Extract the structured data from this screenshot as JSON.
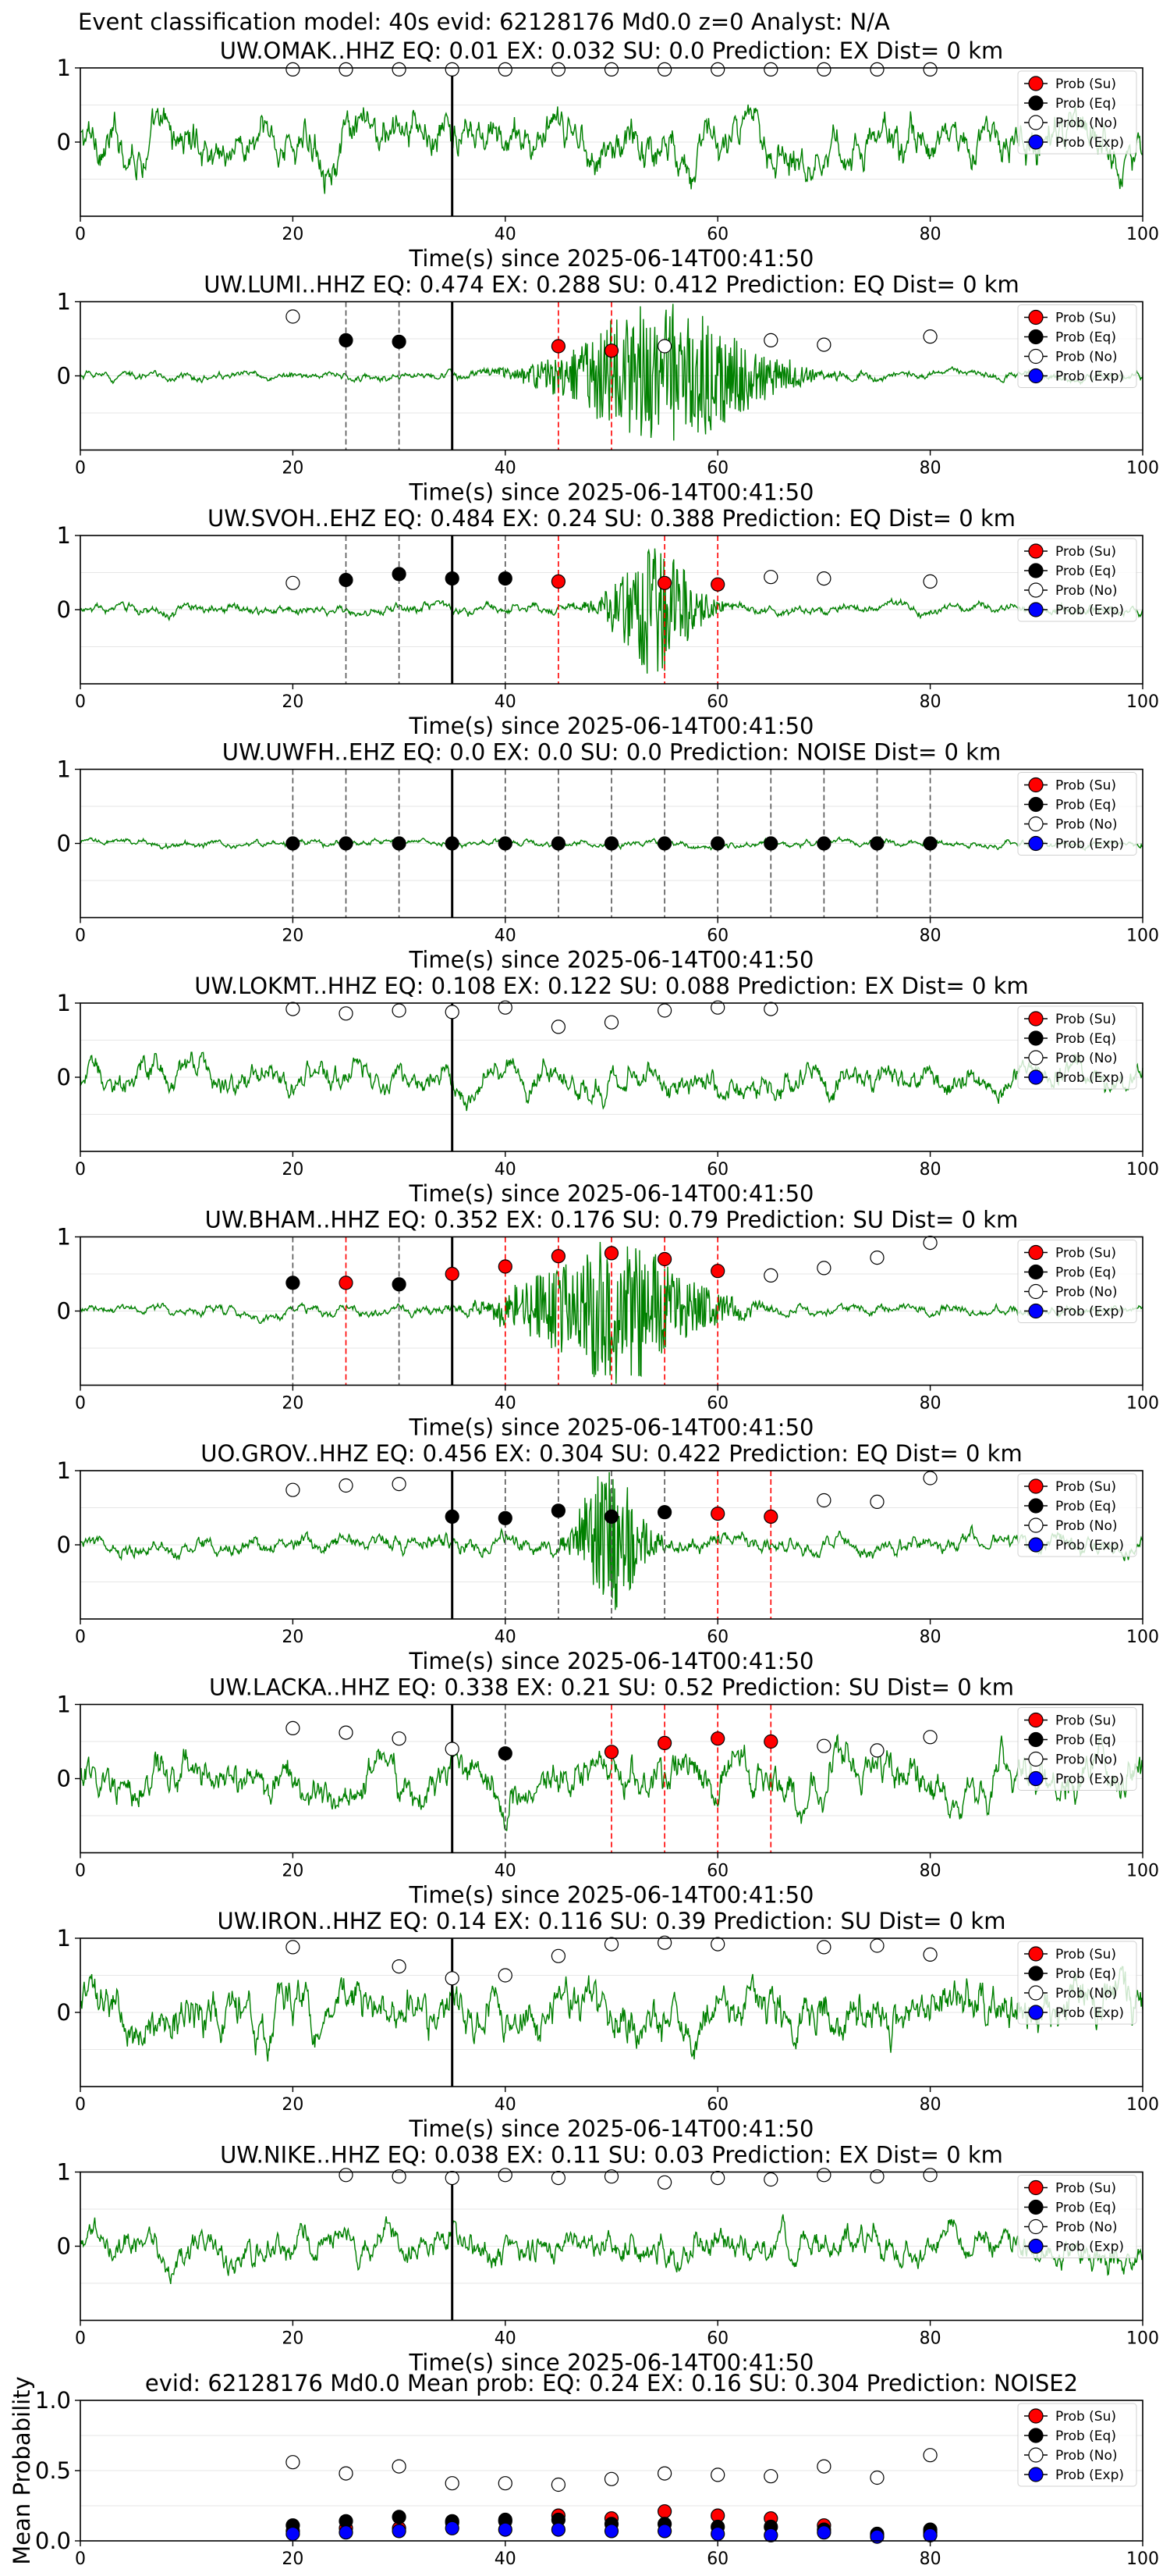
{
  "suptitle": "Event classification model: 40s evid: 62128176 Md0.0 z=0 Analyst: N/A",
  "legend_labels": [
    "Prob (Su)",
    "Prob (Eq)",
    "Prob (No)",
    "Prob (Exp)"
  ],
  "colors": {
    "waveform": "#008000",
    "su": "#ff0000",
    "eq": "#000000",
    "no": "#ffffff",
    "exp": "#0000ff",
    "su_line": "#ff0000",
    "eq_line": "#555555",
    "origin_line": "#000000",
    "grid": "#e6e6e6"
  },
  "chart_data": [
    {
      "type": "line",
      "title": "UW.OMAK..HHZ   EQ: 0.01  EX: 0.032  SU: 0.0   Prediction: EX    Dist= 0 km",
      "xlabel": "Time(s) since 2025-06-14T00:41:50",
      "xlim": [
        0,
        100
      ],
      "ylim": [
        -1,
        1
      ],
      "xticks": [
        0,
        20,
        40,
        60,
        80,
        100
      ],
      "yticks": [
        0,
        1
      ],
      "origin_time": 35,
      "amplitude": 0.8,
      "burst": null,
      "markers": [
        {
          "t": 20,
          "y": 0.98,
          "cls": "no"
        },
        {
          "t": 25,
          "y": 0.98,
          "cls": "no"
        },
        {
          "t": 30,
          "y": 0.98,
          "cls": "no"
        },
        {
          "t": 35,
          "y": 0.98,
          "cls": "no"
        },
        {
          "t": 40,
          "y": 0.98,
          "cls": "no"
        },
        {
          "t": 45,
          "y": 0.98,
          "cls": "no"
        },
        {
          "t": 50,
          "y": 0.98,
          "cls": "no"
        },
        {
          "t": 55,
          "y": 0.98,
          "cls": "no"
        },
        {
          "t": 60,
          "y": 0.98,
          "cls": "no"
        },
        {
          "t": 65,
          "y": 0.98,
          "cls": "no"
        },
        {
          "t": 70,
          "y": 0.98,
          "cls": "no"
        },
        {
          "t": 75,
          "y": 0.98,
          "cls": "no"
        },
        {
          "t": 80,
          "y": 0.98,
          "cls": "no"
        }
      ]
    },
    {
      "type": "line",
      "title": "UW.LUMI..HHZ   EQ: 0.474  EX: 0.288  SU: 0.412   Prediction: EQ    Dist= 0 km",
      "xlabel": "Time(s) since 2025-06-14T00:41:50",
      "xlim": [
        0,
        100
      ],
      "ylim": [
        -1,
        1
      ],
      "xticks": [
        0,
        20,
        40,
        60,
        80,
        100
      ],
      "yticks": [
        0,
        1
      ],
      "origin_time": 35,
      "amplitude": 0.15,
      "burst": {
        "center": 55,
        "width": 9,
        "gain": 1.0
      },
      "markers": [
        {
          "t": 20,
          "y": 0.8,
          "cls": "no"
        },
        {
          "t": 25,
          "y": 0.48,
          "cls": "eq"
        },
        {
          "t": 30,
          "y": 0.46,
          "cls": "eq"
        },
        {
          "t": 45,
          "y": 0.4,
          "cls": "su"
        },
        {
          "t": 50,
          "y": 0.34,
          "cls": "su"
        },
        {
          "t": 55,
          "y": 0.4,
          "cls": "no"
        },
        {
          "t": 65,
          "y": 0.48,
          "cls": "no"
        },
        {
          "t": 70,
          "y": 0.42,
          "cls": "no"
        },
        {
          "t": 80,
          "y": 0.53,
          "cls": "no"
        }
      ]
    },
    {
      "type": "line",
      "title": "UW.SVOH..EHZ   EQ: 0.484  EX: 0.24  SU: 0.388   Prediction: EQ    Dist= 0 km",
      "xlabel": "Time(s) since 2025-06-14T00:41:50",
      "xlim": [
        0,
        100
      ],
      "ylim": [
        -1,
        1
      ],
      "xticks": [
        0,
        20,
        40,
        60,
        80,
        100
      ],
      "yticks": [
        0,
        1
      ],
      "origin_time": 35,
      "amplitude": 0.18,
      "burst": {
        "center": 54,
        "width": 4,
        "gain": 0.9
      },
      "markers": [
        {
          "t": 20,
          "y": 0.36,
          "cls": "no"
        },
        {
          "t": 25,
          "y": 0.4,
          "cls": "eq"
        },
        {
          "t": 30,
          "y": 0.48,
          "cls": "eq"
        },
        {
          "t": 35,
          "y": 0.42,
          "cls": "eq"
        },
        {
          "t": 40,
          "y": 0.42,
          "cls": "eq"
        },
        {
          "t": 45,
          "y": 0.38,
          "cls": "su"
        },
        {
          "t": 55,
          "y": 0.36,
          "cls": "su"
        },
        {
          "t": 60,
          "y": 0.34,
          "cls": "su"
        },
        {
          "t": 65,
          "y": 0.44,
          "cls": "no"
        },
        {
          "t": 70,
          "y": 0.42,
          "cls": "no"
        },
        {
          "t": 80,
          "y": 0.38,
          "cls": "no"
        }
      ]
    },
    {
      "type": "line",
      "title": "UW.UWFH..EHZ   EQ: 0.0  EX: 0.0  SU: 0.0   Prediction: NOISE    Dist= 0 km",
      "xlabel": "Time(s) since 2025-06-14T00:41:50",
      "xlim": [
        0,
        100
      ],
      "ylim": [
        -1,
        1
      ],
      "xticks": [
        0,
        20,
        40,
        60,
        80,
        100
      ],
      "yticks": [
        0,
        1
      ],
      "origin_time": 35,
      "amplitude": 0.12,
      "burst": null,
      "markers": [
        {
          "t": 20,
          "y": 0.0,
          "cls": "eq"
        },
        {
          "t": 25,
          "y": 0.0,
          "cls": "eq"
        },
        {
          "t": 30,
          "y": 0.0,
          "cls": "eq"
        },
        {
          "t": 35,
          "y": 0.0,
          "cls": "eq"
        },
        {
          "t": 40,
          "y": 0.0,
          "cls": "eq"
        },
        {
          "t": 45,
          "y": 0.0,
          "cls": "eq"
        },
        {
          "t": 50,
          "y": 0.0,
          "cls": "eq"
        },
        {
          "t": 55,
          "y": 0.0,
          "cls": "eq"
        },
        {
          "t": 60,
          "y": 0.0,
          "cls": "eq"
        },
        {
          "t": 65,
          "y": 0.0,
          "cls": "eq"
        },
        {
          "t": 70,
          "y": 0.0,
          "cls": "eq"
        },
        {
          "t": 75,
          "y": 0.0,
          "cls": "eq"
        },
        {
          "t": 80,
          "y": 0.0,
          "cls": "eq"
        }
      ]
    },
    {
      "type": "line",
      "title": "UW.LOKMT..HHZ   EQ: 0.108  EX: 0.122  SU: 0.088   Prediction: EX    Dist= 0 km",
      "xlabel": "Time(s) since 2025-06-14T00:41:50",
      "xlim": [
        0,
        100
      ],
      "ylim": [
        -1,
        1
      ],
      "xticks": [
        0,
        20,
        40,
        60,
        80,
        100
      ],
      "yticks": [
        0,
        1
      ],
      "origin_time": 35,
      "amplitude": 0.5,
      "burst": null,
      "markers": [
        {
          "t": 20,
          "y": 0.92,
          "cls": "no"
        },
        {
          "t": 25,
          "y": 0.86,
          "cls": "no"
        },
        {
          "t": 30,
          "y": 0.9,
          "cls": "no"
        },
        {
          "t": 35,
          "y": 0.88,
          "cls": "no"
        },
        {
          "t": 40,
          "y": 0.94,
          "cls": "no"
        },
        {
          "t": 45,
          "y": 0.68,
          "cls": "no"
        },
        {
          "t": 50,
          "y": 0.74,
          "cls": "no"
        },
        {
          "t": 55,
          "y": 0.9,
          "cls": "no"
        },
        {
          "t": 60,
          "y": 0.94,
          "cls": "no"
        },
        {
          "t": 65,
          "y": 0.92,
          "cls": "no"
        }
      ]
    },
    {
      "type": "line",
      "title": "UW.BHAM..HHZ   EQ: 0.352  EX: 0.176  SU: 0.79   Prediction: SU    Dist= 0 km",
      "xlabel": "Time(s) since 2025-06-14T00:41:50",
      "xlim": [
        0,
        100
      ],
      "ylim": [
        -1,
        1
      ],
      "xticks": [
        0,
        20,
        40,
        60,
        80,
        100
      ],
      "yticks": [
        0,
        1
      ],
      "origin_time": 35,
      "amplitude": 0.18,
      "burst": {
        "center": 50,
        "width": 8,
        "gain": 1.0
      },
      "markers": [
        {
          "t": 20,
          "y": 0.38,
          "cls": "eq"
        },
        {
          "t": 25,
          "y": 0.38,
          "cls": "su"
        },
        {
          "t": 30,
          "y": 0.36,
          "cls": "eq"
        },
        {
          "t": 35,
          "y": 0.5,
          "cls": "su"
        },
        {
          "t": 40,
          "y": 0.6,
          "cls": "su"
        },
        {
          "t": 45,
          "y": 0.74,
          "cls": "su"
        },
        {
          "t": 50,
          "y": 0.78,
          "cls": "su"
        },
        {
          "t": 55,
          "y": 0.7,
          "cls": "su"
        },
        {
          "t": 60,
          "y": 0.54,
          "cls": "su"
        },
        {
          "t": 65,
          "y": 0.48,
          "cls": "no"
        },
        {
          "t": 70,
          "y": 0.58,
          "cls": "no"
        },
        {
          "t": 75,
          "y": 0.72,
          "cls": "no"
        },
        {
          "t": 80,
          "y": 0.92,
          "cls": "no"
        }
      ]
    },
    {
      "type": "line",
      "title": "UO.GROV..HHZ   EQ: 0.456  EX: 0.304  SU: 0.422   Prediction: EQ    Dist= 0 km",
      "xlabel": "Time(s) since 2025-06-14T00:41:50",
      "xlim": [
        0,
        100
      ],
      "ylim": [
        -1,
        1
      ],
      "xticks": [
        0,
        20,
        40,
        60,
        80,
        100
      ],
      "yticks": [
        0,
        1
      ],
      "origin_time": 35,
      "amplitude": 0.3,
      "burst": {
        "center": 50,
        "width": 3,
        "gain": 1.0
      },
      "markers": [
        {
          "t": 20,
          "y": 0.74,
          "cls": "no"
        },
        {
          "t": 25,
          "y": 0.8,
          "cls": "no"
        },
        {
          "t": 30,
          "y": 0.82,
          "cls": "no"
        },
        {
          "t": 35,
          "y": 0.38,
          "cls": "eq"
        },
        {
          "t": 40,
          "y": 0.36,
          "cls": "eq"
        },
        {
          "t": 45,
          "y": 0.46,
          "cls": "eq"
        },
        {
          "t": 50,
          "y": 0.38,
          "cls": "eq"
        },
        {
          "t": 55,
          "y": 0.44,
          "cls": "eq"
        },
        {
          "t": 60,
          "y": 0.42,
          "cls": "su"
        },
        {
          "t": 65,
          "y": 0.38,
          "cls": "su"
        },
        {
          "t": 70,
          "y": 0.6,
          "cls": "no"
        },
        {
          "t": 75,
          "y": 0.58,
          "cls": "no"
        },
        {
          "t": 80,
          "y": 0.9,
          "cls": "no"
        }
      ]
    },
    {
      "type": "line",
      "title": "UW.LACKA..HHZ   EQ: 0.338  EX: 0.21  SU: 0.52   Prediction: SU    Dist= 0 km",
      "xlabel": "Time(s) since 2025-06-14T00:41:50",
      "xlim": [
        0,
        100
      ],
      "ylim": [
        -1,
        1
      ],
      "xticks": [
        0,
        20,
        40,
        60,
        80,
        100
      ],
      "yticks": [
        0,
        1
      ],
      "origin_time": 35,
      "amplitude": 0.75,
      "burst": null,
      "markers": [
        {
          "t": 20,
          "y": 0.68,
          "cls": "no"
        },
        {
          "t": 25,
          "y": 0.62,
          "cls": "no"
        },
        {
          "t": 30,
          "y": 0.54,
          "cls": "no"
        },
        {
          "t": 35,
          "y": 0.4,
          "cls": "no"
        },
        {
          "t": 40,
          "y": 0.34,
          "cls": "eq"
        },
        {
          "t": 50,
          "y": 0.36,
          "cls": "su"
        },
        {
          "t": 55,
          "y": 0.48,
          "cls": "su"
        },
        {
          "t": 60,
          "y": 0.54,
          "cls": "su"
        },
        {
          "t": 65,
          "y": 0.5,
          "cls": "su"
        },
        {
          "t": 70,
          "y": 0.44,
          "cls": "no"
        },
        {
          "t": 75,
          "y": 0.38,
          "cls": "no"
        },
        {
          "t": 80,
          "y": 0.56,
          "cls": "no"
        }
      ]
    },
    {
      "type": "line",
      "title": "UW.IRON..HHZ   EQ: 0.14  EX: 0.116  SU: 0.39   Prediction: SU    Dist= 0 km",
      "xlabel": "Time(s) since 2025-06-14T00:41:50",
      "xlim": [
        0,
        100
      ],
      "ylim": [
        -1,
        1
      ],
      "xticks": [
        0,
        20,
        40,
        60,
        80,
        100
      ],
      "yticks": [
        0,
        1
      ],
      "origin_time": 35,
      "amplitude": 0.85,
      "burst": null,
      "markers": [
        {
          "t": 20,
          "y": 0.88,
          "cls": "no"
        },
        {
          "t": 30,
          "y": 0.62,
          "cls": "no"
        },
        {
          "t": 35,
          "y": 0.46,
          "cls": "no"
        },
        {
          "t": 40,
          "y": 0.5,
          "cls": "no"
        },
        {
          "t": 45,
          "y": 0.76,
          "cls": "no"
        },
        {
          "t": 50,
          "y": 0.92,
          "cls": "no"
        },
        {
          "t": 55,
          "y": 0.94,
          "cls": "no"
        },
        {
          "t": 60,
          "y": 0.92,
          "cls": "no"
        },
        {
          "t": 70,
          "y": 0.88,
          "cls": "no"
        },
        {
          "t": 75,
          "y": 0.9,
          "cls": "no"
        },
        {
          "t": 80,
          "y": 0.78,
          "cls": "no"
        }
      ]
    },
    {
      "type": "line",
      "title": "UW.NIKE..HHZ   EQ: 0.038  EX: 0.11  SU: 0.03   Prediction: EX    Dist= 0 km",
      "xlabel": "Time(s) since 2025-06-14T00:41:50",
      "xlim": [
        0,
        100
      ],
      "ylim": [
        -1,
        1
      ],
      "xticks": [
        0,
        20,
        40,
        60,
        80,
        100
      ],
      "yticks": [
        0,
        1
      ],
      "origin_time": 35,
      "amplitude": 0.55,
      "burst": null,
      "markers": [
        {
          "t": 25,
          "y": 0.96,
          "cls": "no"
        },
        {
          "t": 30,
          "y": 0.94,
          "cls": "no"
        },
        {
          "t": 35,
          "y": 0.92,
          "cls": "no"
        },
        {
          "t": 40,
          "y": 0.96,
          "cls": "no"
        },
        {
          "t": 45,
          "y": 0.92,
          "cls": "no"
        },
        {
          "t": 50,
          "y": 0.94,
          "cls": "no"
        },
        {
          "t": 55,
          "y": 0.86,
          "cls": "no"
        },
        {
          "t": 60,
          "y": 0.92,
          "cls": "no"
        },
        {
          "t": 65,
          "y": 0.9,
          "cls": "no"
        },
        {
          "t": 70,
          "y": 0.96,
          "cls": "no"
        },
        {
          "t": 75,
          "y": 0.94,
          "cls": "no"
        },
        {
          "t": 80,
          "y": 0.96,
          "cls": "no"
        }
      ]
    },
    {
      "type": "scatter",
      "title": "evid: 62128176  Md0.0   Mean prob:   EQ: 0.24  EX: 0.16  SU: 0.304   Prediction: NOISE2",
      "ylabel": "Mean Probability",
      "xlim": [
        0,
        100
      ],
      "ylim": [
        0,
        1
      ],
      "xticks": [
        0,
        20,
        40,
        60,
        80,
        100
      ],
      "yticks": [
        0.0,
        0.5,
        1.0
      ],
      "series": [
        {
          "name": "Prob (Su)",
          "cls": "su",
          "x": [
            20,
            25,
            30,
            35,
            40,
            45,
            50,
            55,
            60,
            65,
            70,
            75,
            80
          ],
          "y": [
            0.07,
            0.09,
            0.09,
            0.13,
            0.14,
            0.18,
            0.16,
            0.21,
            0.18,
            0.16,
            0.11,
            0.04,
            0.06
          ]
        },
        {
          "name": "Prob (Eq)",
          "cls": "eq",
          "x": [
            20,
            25,
            30,
            35,
            40,
            45,
            50,
            55,
            60,
            65,
            70,
            75,
            80
          ],
          "y": [
            0.11,
            0.14,
            0.17,
            0.14,
            0.15,
            0.15,
            0.12,
            0.12,
            0.1,
            0.1,
            0.08,
            0.05,
            0.08
          ]
        },
        {
          "name": "Prob (No)",
          "cls": "no",
          "x": [
            20,
            25,
            30,
            35,
            40,
            45,
            50,
            55,
            60,
            65,
            70,
            75,
            80
          ],
          "y": [
            0.56,
            0.48,
            0.53,
            0.41,
            0.41,
            0.4,
            0.44,
            0.48,
            0.47,
            0.46,
            0.53,
            0.45,
            0.61
          ]
        },
        {
          "name": "Prob (Exp)",
          "cls": "exp",
          "x": [
            20,
            25,
            30,
            35,
            40,
            45,
            50,
            55,
            60,
            65,
            70,
            75,
            80
          ],
          "y": [
            0.05,
            0.06,
            0.07,
            0.09,
            0.08,
            0.08,
            0.07,
            0.07,
            0.05,
            0.04,
            0.06,
            0.03,
            0.04
          ]
        }
      ]
    }
  ]
}
